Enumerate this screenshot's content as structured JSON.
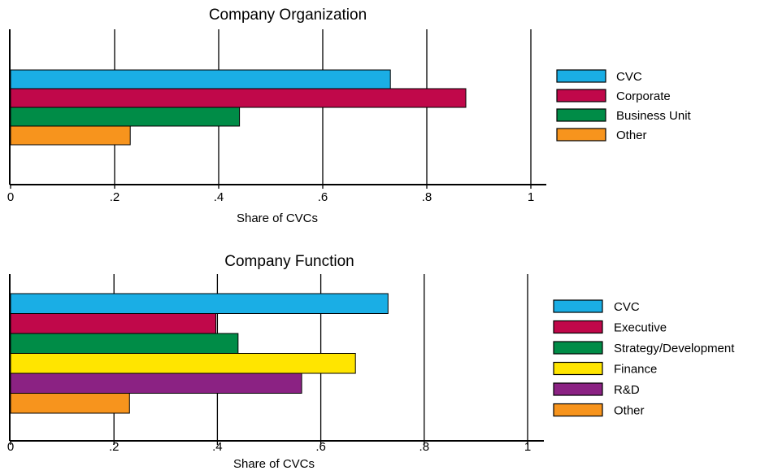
{
  "chart_data": [
    {
      "type": "bar",
      "orientation": "horizontal",
      "title": "Company Organization",
      "xlabel": "Share of CVCs",
      "ylabel": "",
      "xlim": [
        0,
        1
      ],
      "x_ticks": [
        "0",
        ".2",
        ".4",
        ".6",
        ".8",
        "1"
      ],
      "grid": "vertical gridlines at ticks",
      "legend_position": "right",
      "series": [
        {
          "name": "CVC",
          "value": 0.73,
          "color": "#1aaee5"
        },
        {
          "name": "Corporate",
          "value": 0.875,
          "color": "#c0084a"
        },
        {
          "name": "Business Unit",
          "value": 0.44,
          "color": "#008c47"
        },
        {
          "name": "Other",
          "value": 0.23,
          "color": "#f7941d"
        }
      ]
    },
    {
      "type": "bar",
      "orientation": "horizontal",
      "title": "Company Function",
      "xlabel": "Share of CVCs",
      "ylabel": "",
      "xlim": [
        0,
        1
      ],
      "x_ticks": [
        "0",
        ".2",
        ".4",
        ".6",
        ".8",
        "1"
      ],
      "grid": "vertical gridlines at ticks",
      "legend_position": "right",
      "series": [
        {
          "name": "CVC",
          "value": 0.73,
          "color": "#1aaee5"
        },
        {
          "name": "Executive",
          "value": 0.397,
          "color": "#c0084a"
        },
        {
          "name": "Strategy/Development",
          "value": 0.44,
          "color": "#008c47"
        },
        {
          "name": "Finance",
          "value": 0.667,
          "color": "#ffe500"
        },
        {
          "name": "R&D",
          "value": 0.563,
          "color": "#8b2283"
        },
        {
          "name": "Other",
          "value": 0.23,
          "color": "#f7941d"
        }
      ]
    }
  ]
}
